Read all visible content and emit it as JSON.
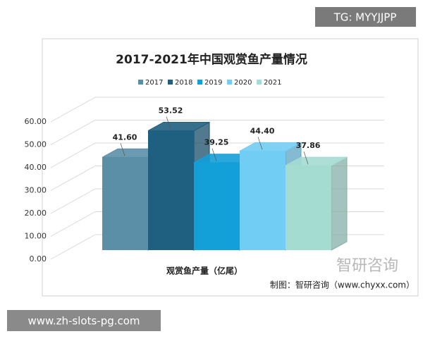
{
  "chart_data": {
    "type": "bar3d",
    "title": "2017-2021年中国观赏鱼产量情况",
    "categories": [
      "观赏鱼产量（亿尾）"
    ],
    "series": [
      {
        "name": "2017",
        "color": "#5b8fa8",
        "values": [
          41.6
        ],
        "value_labels": [
          "41.60"
        ]
      },
      {
        "name": "2018",
        "color": "#1f5f80",
        "values": [
          53.52
        ],
        "value_labels": [
          "53.52"
        ]
      },
      {
        "name": "2019",
        "color": "#139fd8",
        "values": [
          39.25
        ],
        "value_labels": [
          "39.25"
        ]
      },
      {
        "name": "2020",
        "color": "#72cdf4",
        "values": [
          44.4
        ],
        "value_labels": [
          "44.40"
        ]
      },
      {
        "name": "2021",
        "color": "#a5dcd2",
        "values": [
          37.86
        ],
        "value_labels": [
          "37.86"
        ]
      }
    ],
    "ylim": [
      0,
      60
    ],
    "yticks": [
      {
        "value": 0,
        "label": "0.00"
      },
      {
        "value": 10,
        "label": "10.00"
      },
      {
        "value": 20,
        "label": "20.00"
      },
      {
        "value": 30,
        "label": "30.00"
      },
      {
        "value": 40,
        "label": "40.00"
      },
      {
        "value": 50,
        "label": "50.00"
      },
      {
        "value": 60,
        "label": "60.00"
      }
    ],
    "grid": true,
    "legend": "top",
    "source": "制图：智研咨询（www.chyxx.com）",
    "logo": "智研咨询",
    "watermarks": [
      "TG: MYYJJPP",
      "www.zh-slots-pg.com"
    ]
  }
}
